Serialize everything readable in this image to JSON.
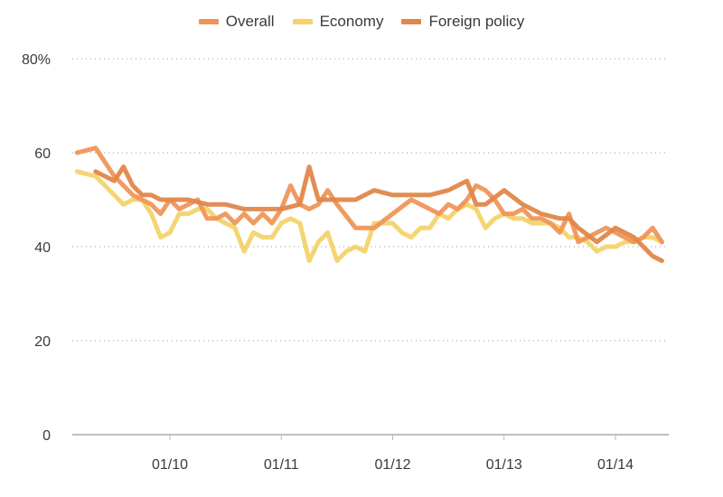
{
  "chart_data": {
    "type": "line",
    "title": "",
    "xlabel": "",
    "ylabel": "",
    "ylim": [
      0,
      80
    ],
    "yticks": [
      0,
      20,
      40,
      60,
      80
    ],
    "ytick_labels": [
      "0",
      "20",
      "40",
      "60",
      "80%"
    ],
    "x_unit": "months since 01/09",
    "xlim": [
      1.5,
      65.5
    ],
    "xticks": [
      12,
      24,
      36,
      48,
      60
    ],
    "xtick_labels": [
      "01/10",
      "01/11",
      "01/12",
      "01/13",
      "01/14"
    ],
    "grid": "horizontal-dotted",
    "legend_position": "top-center",
    "series": [
      {
        "name": "Overall",
        "color": "#f0955a",
        "x": [
          2,
          4,
          6,
          8,
          9,
          10,
          11,
          12,
          13,
          14,
          15,
          16,
          17,
          18,
          19,
          20,
          21,
          22,
          23,
          24,
          25,
          26,
          27,
          28,
          29,
          30,
          32,
          34,
          36,
          38,
          40,
          41,
          42,
          43,
          44,
          45,
          46,
          47,
          48,
          49,
          50,
          51,
          52,
          53,
          54,
          55,
          56,
          57,
          58,
          59,
          60,
          61,
          62,
          63,
          64,
          65
        ],
        "y": [
          60,
          61,
          55,
          51,
          50,
          49,
          47,
          50,
          48,
          49,
          50,
          46,
          46,
          47,
          45,
          47,
          45,
          47,
          45,
          48,
          53,
          49,
          48,
          49,
          52,
          49,
          44,
          44,
          47,
          50,
          48,
          47,
          49,
          48,
          50,
          53,
          52,
          50,
          47,
          47,
          48,
          46,
          46,
          45,
          43,
          47,
          41,
          42,
          43,
          44,
          43,
          42,
          41,
          42,
          44,
          41
        ]
      },
      {
        "name": "Economy",
        "color": "#f3d36a",
        "x": [
          2,
          4,
          6,
          7,
          8,
          9,
          10,
          11,
          12,
          13,
          14,
          15,
          16,
          17,
          18,
          19,
          20,
          21,
          22,
          23,
          24,
          25,
          26,
          27,
          28,
          29,
          30,
          31,
          32,
          33,
          34,
          35,
          36,
          37,
          38,
          39,
          40,
          41,
          42,
          43,
          44,
          45,
          46,
          47,
          48,
          49,
          50,
          51,
          52,
          53,
          54,
          55,
          56,
          57,
          58,
          59,
          60,
          61,
          62,
          63,
          64,
          65
        ],
        "y": [
          56,
          55,
          51,
          49,
          50,
          50,
          47,
          42,
          43,
          47,
          47,
          48,
          48,
          46,
          45,
          44,
          39,
          43,
          42,
          42,
          45,
          46,
          45,
          37,
          41,
          43,
          37,
          39,
          40,
          39,
          45,
          45,
          45,
          43,
          42,
          44,
          44,
          47,
          46,
          48,
          49,
          48,
          44,
          46,
          47,
          46,
          46,
          45,
          45,
          45,
          44,
          42,
          42,
          41,
          39,
          40,
          40,
          41,
          41,
          42,
          42,
          41
        ]
      },
      {
        "name": "Foreign policy",
        "color": "#e0874a",
        "x": [
          4,
          6,
          7,
          8,
          9,
          10,
          11,
          12,
          14,
          16,
          18,
          20,
          22,
          24,
          26,
          27,
          28,
          30,
          32,
          34,
          36,
          38,
          40,
          42,
          43,
          44,
          45,
          46,
          48,
          50,
          52,
          54,
          55,
          56,
          58,
          60,
          62,
          64,
          65
        ],
        "y": [
          56,
          54,
          57,
          53,
          51,
          51,
          50,
          50,
          50,
          49,
          49,
          48,
          48,
          48,
          49,
          57,
          50,
          50,
          50,
          52,
          51,
          51,
          51,
          52,
          53,
          54,
          49,
          49,
          52,
          49,
          47,
          46,
          46,
          44,
          41,
          44,
          42,
          38,
          37
        ]
      }
    ]
  }
}
